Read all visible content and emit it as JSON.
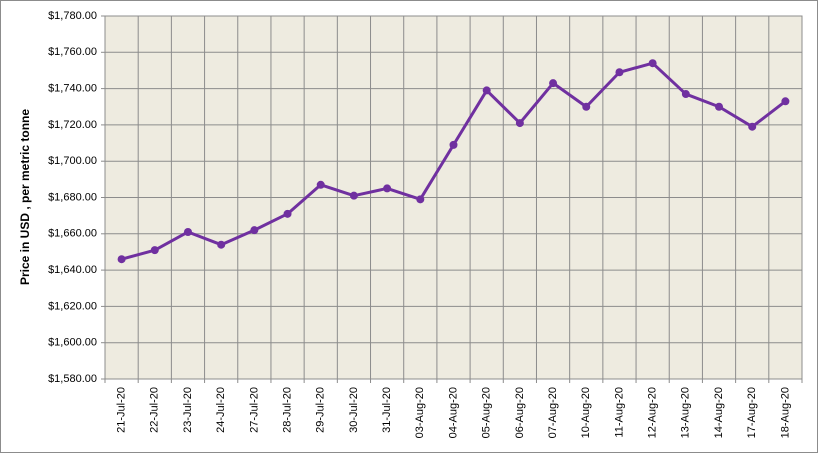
{
  "chart_data": {
    "type": "line",
    "y_label": "Price in USD , per metric tonne",
    "categories": [
      "21-Jul-20",
      "22-Jul-20",
      "23-Jul-20",
      "24-Jul-20",
      "27-Jul-20",
      "28-Jul-20",
      "29-Jul-20",
      "30-Jul-20",
      "31-Jul-20",
      "03-Aug-20",
      "04-Aug-20",
      "05-Aug-20",
      "06-Aug-20",
      "07-Aug-20",
      "10-Aug-20",
      "11-Aug-20",
      "12-Aug-20",
      "13-Aug-20",
      "14-Aug-20",
      "17-Aug-20",
      "18-Aug-20"
    ],
    "values": [
      1646,
      1651,
      1661,
      1654,
      1662,
      1671,
      1687,
      1681,
      1685,
      1679,
      1709,
      1739,
      1721,
      1743,
      1730,
      1749,
      1754,
      1737,
      1730,
      1719,
      1733
    ],
    "color": "#7030a0",
    "ylim": [
      1580,
      1780
    ],
    "yticks": [
      {
        "value": 1580,
        "label": "$1,580.00"
      },
      {
        "value": 1600,
        "label": "$1,600.00"
      },
      {
        "value": 1620,
        "label": "$1,620.00"
      },
      {
        "value": 1640,
        "label": "$1,640.00"
      },
      {
        "value": 1660,
        "label": "$1,660.00"
      },
      {
        "value": 1680,
        "label": "$1,680.00"
      },
      {
        "value": 1700,
        "label": "$1,700.00"
      },
      {
        "value": 1720,
        "label": "$1,720.00"
      },
      {
        "value": 1740,
        "label": "$1,740.00"
      },
      {
        "value": 1760,
        "label": "$1,760.00"
      },
      {
        "value": 1780,
        "label": "$1,780.00"
      }
    ],
    "grid": true
  }
}
